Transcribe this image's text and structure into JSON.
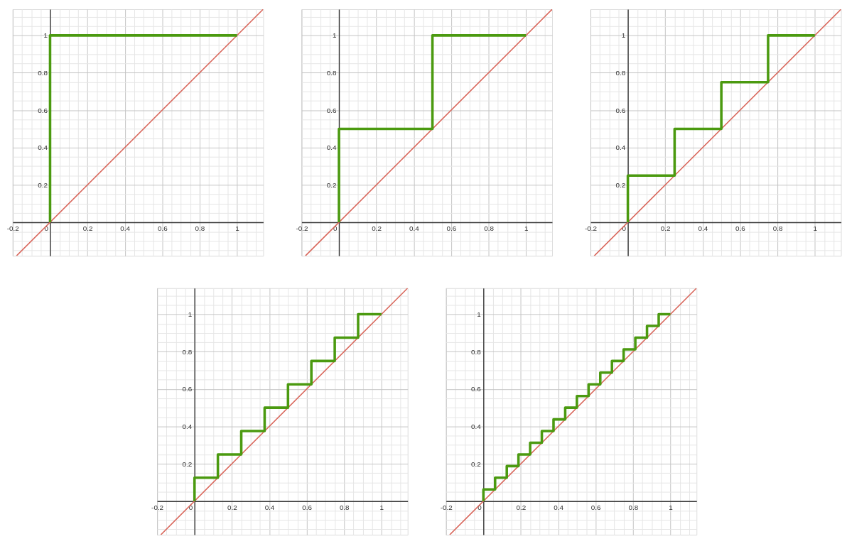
{
  "chart_data": [
    {
      "type": "step",
      "xlim": [
        -0.2,
        1.14
      ],
      "ylim": [
        -0.18,
        1.14
      ],
      "grid": true,
      "xticks": [
        -0.2,
        {
          "value": -0.15,
          "label": null
        },
        {
          "value": -0.1,
          "label": null
        },
        {
          "value": -0.05,
          "label": null
        },
        0,
        {
          "value": 0.05,
          "label": null
        },
        {
          "value": 0.1,
          "label": null
        },
        {
          "value": 0.15,
          "label": null
        },
        0.2,
        {
          "value": 0.25,
          "label": null
        },
        {
          "value": 0.3,
          "label": null
        },
        {
          "value": 0.35,
          "label": null
        },
        0.4,
        {
          "value": 0.45,
          "label": null
        },
        {
          "value": 0.5,
          "label": null
        },
        {
          "value": 0.55,
          "label": null
        },
        0.6,
        {
          "value": 0.65,
          "label": null
        },
        {
          "value": 0.7,
          "label": null
        },
        {
          "value": 0.75,
          "label": null
        },
        0.8,
        {
          "value": 0.85,
          "label": null
        },
        {
          "value": 0.9,
          "label": null
        },
        {
          "value": 0.95,
          "label": null
        },
        1,
        {
          "value": 1.05,
          "label": null
        },
        {
          "value": 1.1,
          "label": null
        }
      ],
      "yticks": [
        {
          "value": -0.15,
          "label": null
        },
        {
          "value": -0.1,
          "label": null
        },
        {
          "value": -0.05,
          "label": null
        },
        {
          "value": 0,
          "label": null
        },
        {
          "value": 0.05,
          "label": null
        },
        {
          "value": 0.1,
          "label": null
        },
        {
          "value": 0.15,
          "label": null
        },
        0.2,
        {
          "value": 0.25,
          "label": null
        },
        {
          "value": 0.3,
          "label": null
        },
        {
          "value": 0.35,
          "label": null
        },
        0.4,
        {
          "value": 0.45,
          "label": null
        },
        {
          "value": 0.5,
          "label": null
        },
        {
          "value": 0.55,
          "label": null
        },
        0.6,
        {
          "value": 0.65,
          "label": null
        },
        {
          "value": 0.7,
          "label": null
        },
        {
          "value": 0.75,
          "label": null
        },
        0.8,
        {
          "value": 0.85,
          "label": null
        },
        {
          "value": 0.9,
          "label": null
        },
        {
          "value": 0.95,
          "label": null
        },
        1,
        {
          "value": 1.05,
          "label": null
        },
        {
          "value": 1.1,
          "label": null
        }
      ],
      "series": [
        {
          "type": "line",
          "color": "#d9675c",
          "x": [
            -0.18,
            1.14
          ],
          "values": [
            -0.18,
            1.14
          ]
        },
        {
          "color": "#4b9a10",
          "x": [
            0,
            0,
            1
          ],
          "values": [
            0,
            1,
            1
          ]
        }
      ]
    },
    {
      "type": "step",
      "xlim": [
        -0.2,
        1.14
      ],
      "ylim": [
        -0.18,
        1.14
      ],
      "grid": true,
      "xticks": [
        -0.2,
        {
          "value": -0.15,
          "label": null
        },
        {
          "value": -0.1,
          "label": null
        },
        {
          "value": -0.05,
          "label": null
        },
        0,
        {
          "value": 0.05,
          "label": null
        },
        {
          "value": 0.1,
          "label": null
        },
        {
          "value": 0.15,
          "label": null
        },
        0.2,
        {
          "value": 0.25,
          "label": null
        },
        {
          "value": 0.3,
          "label": null
        },
        {
          "value": 0.35,
          "label": null
        },
        0.4,
        {
          "value": 0.45,
          "label": null
        },
        {
          "value": 0.5,
          "label": null
        },
        {
          "value": 0.55,
          "label": null
        },
        0.6,
        {
          "value": 0.65,
          "label": null
        },
        {
          "value": 0.7,
          "label": null
        },
        {
          "value": 0.75,
          "label": null
        },
        0.8,
        {
          "value": 0.85,
          "label": null
        },
        {
          "value": 0.9,
          "label": null
        },
        {
          "value": 0.95,
          "label": null
        },
        1,
        {
          "value": 1.05,
          "label": null
        },
        {
          "value": 1.1,
          "label": null
        }
      ],
      "yticks": [
        {
          "value": -0.15,
          "label": null
        },
        {
          "value": -0.1,
          "label": null
        },
        {
          "value": -0.05,
          "label": null
        },
        {
          "value": 0,
          "label": null
        },
        {
          "value": 0.05,
          "label": null
        },
        {
          "value": 0.1,
          "label": null
        },
        {
          "value": 0.15,
          "label": null
        },
        0.2,
        {
          "value": 0.25,
          "label": null
        },
        {
          "value": 0.3,
          "label": null
        },
        {
          "value": 0.35,
          "label": null
        },
        0.4,
        {
          "value": 0.45,
          "label": null
        },
        {
          "value": 0.5,
          "label": null
        },
        {
          "value": 0.55,
          "label": null
        },
        0.6,
        {
          "value": 0.65,
          "label": null
        },
        {
          "value": 0.7,
          "label": null
        },
        {
          "value": 0.75,
          "label": null
        },
        0.8,
        {
          "value": 0.85,
          "label": null
        },
        {
          "value": 0.9,
          "label": null
        },
        {
          "value": 0.95,
          "label": null
        },
        1,
        {
          "value": 1.05,
          "label": null
        },
        {
          "value": 1.1,
          "label": null
        }
      ],
      "series": [
        {
          "type": "line",
          "color": "#d9675c",
          "x": [
            -0.18,
            1.14
          ],
          "values": [
            -0.18,
            1.14
          ]
        },
        {
          "color": "#4b9a10",
          "x": [
            0,
            0,
            0.5,
            1
          ],
          "values": [
            0,
            0.5,
            1,
            1
          ]
        }
      ]
    },
    {
      "type": "step",
      "xlim": [
        -0.2,
        1.14
      ],
      "ylim": [
        -0.18,
        1.14
      ],
      "grid": true,
      "xticks": [
        -0.2,
        {
          "value": -0.15,
          "label": null
        },
        {
          "value": -0.1,
          "label": null
        },
        {
          "value": -0.05,
          "label": null
        },
        0,
        {
          "value": 0.05,
          "label": null
        },
        {
          "value": 0.1,
          "label": null
        },
        {
          "value": 0.15,
          "label": null
        },
        0.2,
        {
          "value": 0.25,
          "label": null
        },
        {
          "value": 0.3,
          "label": null
        },
        {
          "value": 0.35,
          "label": null
        },
        0.4,
        {
          "value": 0.45,
          "label": null
        },
        {
          "value": 0.5,
          "label": null
        },
        {
          "value": 0.55,
          "label": null
        },
        0.6,
        {
          "value": 0.65,
          "label": null
        },
        {
          "value": 0.7,
          "label": null
        },
        {
          "value": 0.75,
          "label": null
        },
        0.8,
        {
          "value": 0.85,
          "label": null
        },
        {
          "value": 0.9,
          "label": null
        },
        {
          "value": 0.95,
          "label": null
        },
        1,
        {
          "value": 1.05,
          "label": null
        },
        {
          "value": 1.1,
          "label": null
        }
      ],
      "yticks": [
        {
          "value": -0.15,
          "label": null
        },
        {
          "value": -0.1,
          "label": null
        },
        {
          "value": -0.05,
          "label": null
        },
        {
          "value": 0,
          "label": null
        },
        {
          "value": 0.05,
          "label": null
        },
        {
          "value": 0.1,
          "label": null
        },
        {
          "value": 0.15,
          "label": null
        },
        0.2,
        {
          "value": 0.25,
          "label": null
        },
        {
          "value": 0.3,
          "label": null
        },
        {
          "value": 0.35,
          "label": null
        },
        0.4,
        {
          "value": 0.45,
          "label": null
        },
        {
          "value": 0.5,
          "label": null
        },
        {
          "value": 0.55,
          "label": null
        },
        0.6,
        {
          "value": 0.65,
          "label": null
        },
        {
          "value": 0.7,
          "label": null
        },
        {
          "value": 0.75,
          "label": null
        },
        0.8,
        {
          "value": 0.85,
          "label": null
        },
        {
          "value": 0.9,
          "label": null
        },
        {
          "value": 0.95,
          "label": null
        },
        1,
        {
          "value": 1.05,
          "label": null
        },
        {
          "value": 1.1,
          "label": null
        }
      ],
      "series": [
        {
          "type": "line",
          "color": "#d9675c",
          "x": [
            -0.18,
            1.14
          ],
          "values": [
            -0.18,
            1.14
          ]
        },
        {
          "color": "#4b9a10",
          "x": [
            0,
            0,
            0.25,
            0.5,
            0.75,
            1
          ],
          "values": [
            0,
            0.25,
            0.5,
            0.75,
            1,
            1
          ]
        }
      ]
    },
    {
      "type": "step",
      "xlim": [
        -0.2,
        1.14
      ],
      "ylim": [
        -0.18,
        1.14
      ],
      "grid": true,
      "xticks": [
        -0.2,
        {
          "value": -0.15,
          "label": null
        },
        {
          "value": -0.1,
          "label": null
        },
        {
          "value": -0.05,
          "label": null
        },
        0,
        {
          "value": 0.05,
          "label": null
        },
        {
          "value": 0.1,
          "label": null
        },
        {
          "value": 0.15,
          "label": null
        },
        0.2,
        {
          "value": 0.25,
          "label": null
        },
        {
          "value": 0.3,
          "label": null
        },
        {
          "value": 0.35,
          "label": null
        },
        0.4,
        {
          "value": 0.45,
          "label": null
        },
        {
          "value": 0.5,
          "label": null
        },
        {
          "value": 0.55,
          "label": null
        },
        0.6,
        {
          "value": 0.65,
          "label": null
        },
        {
          "value": 0.7,
          "label": null
        },
        {
          "value": 0.75,
          "label": null
        },
        0.8,
        {
          "value": 0.85,
          "label": null
        },
        {
          "value": 0.9,
          "label": null
        },
        {
          "value": 0.95,
          "label": null
        },
        1,
        {
          "value": 1.05,
          "label": null
        },
        {
          "value": 1.1,
          "label": null
        }
      ],
      "yticks": [
        {
          "value": -0.15,
          "label": null
        },
        {
          "value": -0.1,
          "label": null
        },
        {
          "value": -0.05,
          "label": null
        },
        {
          "value": 0,
          "label": null
        },
        {
          "value": 0.05,
          "label": null
        },
        {
          "value": 0.1,
          "label": null
        },
        {
          "value": 0.15,
          "label": null
        },
        0.2,
        {
          "value": 0.25,
          "label": null
        },
        {
          "value": 0.3,
          "label": null
        },
        {
          "value": 0.35,
          "label": null
        },
        0.4,
        {
          "value": 0.45,
          "label": null
        },
        {
          "value": 0.5,
          "label": null
        },
        {
          "value": 0.55,
          "label": null
        },
        0.6,
        {
          "value": 0.65,
          "label": null
        },
        {
          "value": 0.7,
          "label": null
        },
        {
          "value": 0.75,
          "label": null
        },
        0.8,
        {
          "value": 0.85,
          "label": null
        },
        {
          "value": 0.9,
          "label": null
        },
        {
          "value": 0.95,
          "label": null
        },
        1,
        {
          "value": 1.05,
          "label": null
        },
        {
          "value": 1.1,
          "label": null
        }
      ],
      "series": [
        {
          "type": "line",
          "color": "#d9675c",
          "x": [
            -0.18,
            1.14
          ],
          "values": [
            -0.18,
            1.14
          ]
        },
        {
          "color": "#4b9a10",
          "x": [
            0,
            0,
            0.125,
            0.25,
            0.375,
            0.5,
            0.625,
            0.75,
            0.875,
            1
          ],
          "values": [
            0,
            0.125,
            0.25,
            0.375,
            0.5,
            0.625,
            0.75,
            0.875,
            1,
            1
          ]
        }
      ]
    },
    {
      "type": "step",
      "xlim": [
        -0.2,
        1.14
      ],
      "ylim": [
        -0.18,
        1.14
      ],
      "grid": true,
      "xticks": [
        -0.2,
        {
          "value": -0.15,
          "label": null
        },
        {
          "value": -0.1,
          "label": null
        },
        {
          "value": -0.05,
          "label": null
        },
        0,
        {
          "value": 0.05,
          "label": null
        },
        {
          "value": 0.1,
          "label": null
        },
        {
          "value": 0.15,
          "label": null
        },
        0.2,
        {
          "value": 0.25,
          "label": null
        },
        {
          "value": 0.3,
          "label": null
        },
        {
          "value": 0.35,
          "label": null
        },
        0.4,
        {
          "value": 0.45,
          "label": null
        },
        {
          "value": 0.5,
          "label": null
        },
        {
          "value": 0.55,
          "label": null
        },
        0.6,
        {
          "value": 0.65,
          "label": null
        },
        {
          "value": 0.7,
          "label": null
        },
        {
          "value": 0.75,
          "label": null
        },
        0.8,
        {
          "value": 0.85,
          "label": null
        },
        {
          "value": 0.9,
          "label": null
        },
        {
          "value": 0.95,
          "label": null
        },
        1,
        {
          "value": 1.05,
          "label": null
        },
        {
          "value": 1.1,
          "label": null
        }
      ],
      "yticks": [
        {
          "value": -0.15,
          "label": null
        },
        {
          "value": -0.1,
          "label": null
        },
        {
          "value": -0.05,
          "label": null
        },
        {
          "value": 0,
          "label": null
        },
        {
          "value": 0.05,
          "label": null
        },
        {
          "value": 0.1,
          "label": null
        },
        {
          "value": 0.15,
          "label": null
        },
        0.2,
        {
          "value": 0.25,
          "label": null
        },
        {
          "value": 0.3,
          "label": null
        },
        {
          "value": 0.35,
          "label": null
        },
        0.4,
        {
          "value": 0.45,
          "label": null
        },
        {
          "value": 0.5,
          "label": null
        },
        {
          "value": 0.55,
          "label": null
        },
        0.6,
        {
          "value": 0.65,
          "label": null
        },
        {
          "value": 0.7,
          "label": null
        },
        {
          "value": 0.75,
          "label": null
        },
        0.8,
        {
          "value": 0.85,
          "label": null
        },
        {
          "value": 0.9,
          "label": null
        },
        {
          "value": 0.95,
          "label": null
        },
        1,
        {
          "value": 1.05,
          "label": null
        },
        {
          "value": 1.1,
          "label": null
        }
      ],
      "series": [
        {
          "type": "line",
          "color": "#d9675c",
          "x": [
            -0.18,
            1.14
          ],
          "values": [
            -0.18,
            1.14
          ]
        },
        {
          "color": "#4b9a10",
          "x": [
            0,
            0,
            0.0625,
            0.125,
            0.1875,
            0.25,
            0.3125,
            0.375,
            0.4375,
            0.5,
            0.5625,
            0.625,
            0.6875,
            0.75,
            0.8125,
            0.875,
            0.9375,
            1
          ],
          "values": [
            0,
            0.0625,
            0.125,
            0.1875,
            0.25,
            0.3125,
            0.375,
            0.4375,
            0.5,
            0.5625,
            0.625,
            0.6875,
            0.75,
            0.8125,
            0.875,
            0.9375,
            1,
            1
          ]
        }
      ]
    }
  ]
}
